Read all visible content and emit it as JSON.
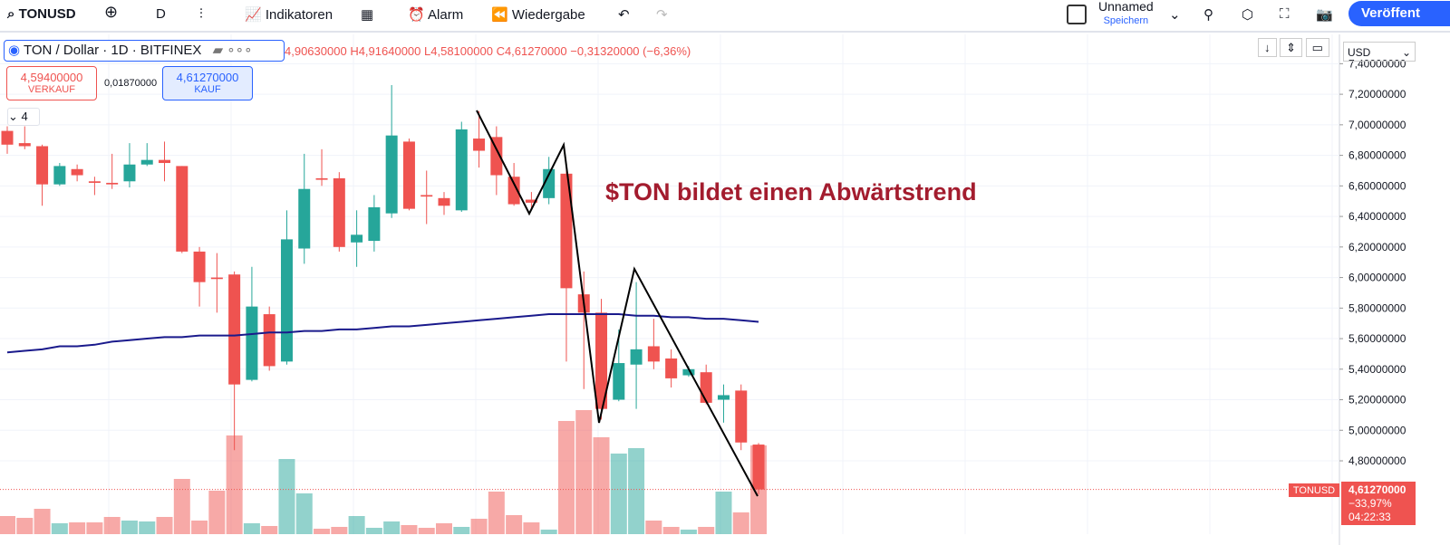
{
  "toolbar": {
    "symbol": "TONUSD",
    "interval": "D",
    "indicators": "Indikatoren",
    "alarm": "Alarm",
    "replay": "Wiedergabe",
    "layout_name": "Unnamed",
    "save": "Speichern",
    "publish": "Veröffent"
  },
  "legend": {
    "title": "TON / Dollar · 1D · BITFINEX",
    "open": "4,90630000",
    "high": "H4,91640000",
    "low": "L4,58100000",
    "close": "C4,61270000",
    "change": "−0,31320000 (−6,36%)",
    "sell_price": "4,59400000",
    "sell": "VERKAUF",
    "spread": "0,01870000",
    "buy_price": "4,61270000",
    "buy": "KAUF",
    "indicator_count": "4"
  },
  "price_axis": {
    "currency": "USD",
    "symbol_tag": "TONUSD",
    "last_price": "4,61270000",
    "last_change": "−33,97%",
    "countdown": "04:22:33"
  },
  "chart_data": {
    "type": "candlestick",
    "annotation": "$TON bildet einen Abwärtstrend",
    "ylim": [
      4.32,
      7.58
    ],
    "yticks": [
      {
        "value": 7.4,
        "label": "7,40000000"
      },
      {
        "value": 7.2,
        "label": "7,20000000"
      },
      {
        "value": 7.0,
        "label": "7,00000000"
      },
      {
        "value": 6.8,
        "label": "6,80000000"
      },
      {
        "value": 6.6,
        "label": "6,60000000"
      },
      {
        "value": 6.4,
        "label": "6,40000000"
      },
      {
        "value": 6.2,
        "label": "6,20000000"
      },
      {
        "value": 6.0,
        "label": "6,00000000"
      },
      {
        "value": 5.8,
        "label": "5,80000000"
      },
      {
        "value": 5.6,
        "label": "5,60000000"
      },
      {
        "value": 5.4,
        "label": "5,40000000"
      },
      {
        "value": 5.2,
        "label": "5,20000000"
      },
      {
        "value": 5.0,
        "label": "5,00000000"
      },
      {
        "value": 4.8,
        "label": "4,80000000"
      }
    ],
    "grid": true,
    "up_color": "#26a69a",
    "down_color": "#ef5350",
    "ma_color": "#1a1a8c",
    "open": [
      6.96,
      6.88,
      6.86,
      6.61,
      6.71,
      6.63,
      6.62,
      6.63,
      6.74,
      6.77,
      6.73,
      6.17,
      6.0,
      6.02,
      5.33,
      5.76,
      5.45,
      6.19,
      6.65,
      6.65,
      6.23,
      6.24,
      6.42,
      6.89,
      6.54,
      6.52,
      6.44,
      6.91,
      6.92,
      6.66,
      6.51,
      6.52,
      6.68,
      5.89,
      5.77,
      5.2,
      5.43,
      5.55,
      5.47,
      5.36,
      5.38,
      5.2,
      5.26,
      4.9063
    ],
    "high": [
      6.99,
      6.99,
      6.87,
      6.75,
      6.74,
      6.66,
      6.81,
      6.88,
      6.88,
      6.89,
      6.73,
      6.2,
      6.16,
      6.04,
      6.07,
      5.81,
      6.44,
      6.81,
      6.84,
      6.69,
      6.44,
      6.54,
      7.26,
      6.91,
      6.7,
      6.56,
      7.02,
      7.09,
      6.99,
      6.75,
      6.56,
      6.79,
      6.74,
      6.04,
      5.86,
      5.66,
      5.97,
      5.73,
      5.53,
      5.42,
      5.43,
      5.3,
      5.3,
      4.9164
    ],
    "low": [
      6.81,
      6.84,
      6.47,
      6.6,
      6.63,
      6.54,
      6.58,
      6.59,
      6.73,
      6.63,
      6.16,
      5.81,
      5.77,
      4.87,
      5.32,
      5.39,
      5.43,
      6.09,
      6.6,
      6.17,
      6.07,
      6.17,
      6.39,
      6.44,
      6.35,
      6.41,
      6.43,
      6.72,
      6.54,
      6.47,
      6.44,
      6.48,
      5.45,
      5.27,
      5.07,
      5.19,
      5.14,
      5.4,
      5.28,
      5.35,
      5.17,
      5.05,
      4.87,
      4.581
    ],
    "close": [
      6.87,
      6.86,
      6.61,
      6.73,
      6.67,
      6.62,
      6.61,
      6.74,
      6.77,
      6.75,
      6.17,
      5.97,
      5.99,
      5.3,
      5.81,
      5.42,
      6.25,
      6.58,
      6.64,
      6.2,
      6.28,
      6.46,
      6.93,
      6.45,
      6.53,
      6.47,
      6.97,
      6.83,
      6.67,
      6.48,
      6.49,
      6.71,
      5.93,
      5.77,
      5.14,
      5.44,
      5.53,
      5.45,
      5.34,
      5.4,
      5.18,
      5.23,
      4.92,
      4.6127
    ],
    "volume": [
      20,
      18,
      28,
      12,
      13,
      13,
      19,
      15,
      14,
      19,
      61,
      15,
      48,
      109,
      12,
      9,
      83,
      45,
      6,
      8,
      20,
      7,
      14,
      10,
      7,
      12,
      8,
      17,
      47,
      21,
      13,
      5,
      125,
      137,
      107,
      89,
      95,
      15,
      8,
      5,
      8,
      47,
      24,
      98
    ],
    "volume_lim": [
      0,
      550
    ],
    "ma": [
      5.51,
      5.52,
      5.53,
      5.55,
      5.55,
      5.56,
      5.58,
      5.59,
      5.6,
      5.61,
      5.61,
      5.62,
      5.62,
      5.62,
      5.63,
      5.64,
      5.64,
      5.65,
      5.65,
      5.66,
      5.66,
      5.67,
      5.68,
      5.68,
      5.69,
      5.7,
      5.71,
      5.72,
      5.73,
      5.74,
      5.75,
      5.76,
      5.76,
      5.76,
      5.76,
      5.76,
      5.75,
      5.75,
      5.74,
      5.74,
      5.73,
      5.73,
      5.72,
      5.71
    ]
  }
}
